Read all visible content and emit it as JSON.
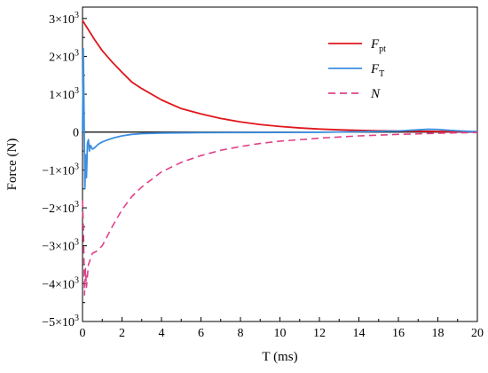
{
  "chart_data": {
    "type": "line",
    "xlabel": "T (ms)",
    "ylabel": "Force (N)",
    "xlim": [
      0,
      20
    ],
    "ylim": [
      -5000,
      3300
    ],
    "x_ticks": [
      0,
      2,
      4,
      6,
      8,
      10,
      12,
      14,
      16,
      18,
      20
    ],
    "x_tick_labels": [
      "0",
      "2",
      "4",
      "6",
      "8",
      "10",
      "12",
      "14",
      "16",
      "18",
      "20"
    ],
    "y_ticks": [
      {
        "value": 3000,
        "mantissa": "3×10",
        "exp": "3"
      },
      {
        "value": 2000,
        "mantissa": "2×10",
        "exp": "3"
      },
      {
        "value": 1000,
        "mantissa": "1×10",
        "exp": "3"
      },
      {
        "value": 0,
        "mantissa": "0",
        "exp": ""
      },
      {
        "value": -1000,
        "mantissa": "−1×10",
        "exp": "3"
      },
      {
        "value": -2000,
        "mantissa": "−2×10",
        "exp": "3"
      },
      {
        "value": -3000,
        "mantissa": "−3×10",
        "exp": "3"
      },
      {
        "value": -4000,
        "mantissa": "−4×10",
        "exp": "3"
      },
      {
        "value": -5000,
        "mantissa": "−5×10",
        "exp": "3"
      }
    ],
    "zero_line": true,
    "grid": false,
    "legend_position": "top-right",
    "series": [
      {
        "name": "F",
        "name_sub": "pt",
        "color": "#e0161b",
        "dash": "solid",
        "x": [
          0,
          0.3,
          0.6,
          1,
          1.5,
          2,
          2.5,
          3,
          4,
          5,
          6,
          7,
          8,
          9,
          10,
          11,
          12,
          13,
          14,
          15,
          16,
          17,
          18,
          19,
          20
        ],
        "y": [
          2950,
          2700,
          2450,
          2150,
          1850,
          1580,
          1320,
          1150,
          850,
          620,
          480,
          360,
          270,
          200,
          150,
          110,
          80,
          60,
          45,
          35,
          28,
          22,
          18,
          15,
          12
        ]
      },
      {
        "name": "F",
        "name_sub": "T",
        "color": "#3d8fe0",
        "dash": "solid",
        "x": [
          0,
          0.04,
          0.08,
          0.12,
          0.16,
          0.2,
          0.25,
          0.3,
          0.35,
          0.4,
          0.5,
          0.6,
          0.8,
          1.0,
          1.3,
          1.6,
          2.0,
          2.5,
          3,
          4,
          6,
          8,
          10,
          12,
          14,
          15,
          16,
          17,
          17.5,
          18,
          18.5,
          19,
          19.5,
          20
        ],
        "y": [
          0,
          2200,
          400,
          -1500,
          -600,
          -1200,
          -300,
          -200,
          -500,
          -350,
          -450,
          -420,
          -320,
          -260,
          -200,
          -150,
          -100,
          -60,
          -40,
          -25,
          -15,
          -10,
          -8,
          -5,
          10,
          20,
          30,
          60,
          75,
          70,
          50,
          35,
          20,
          10
        ]
      },
      {
        "name": "N",
        "name_sub": "",
        "color": "#e0408a",
        "dash": "8,5",
        "x": [
          0,
          0.05,
          0.1,
          0.15,
          0.2,
          0.3,
          0.5,
          0.7,
          1.0,
          1.5,
          2,
          2.5,
          3,
          4,
          5,
          6,
          7,
          8,
          9,
          10,
          12,
          14,
          16,
          18,
          20
        ],
        "y": [
          -1800,
          -2600,
          -4300,
          -3600,
          -4100,
          -3500,
          -3200,
          -3150,
          -3000,
          -2500,
          -2050,
          -1700,
          -1450,
          -1050,
          -800,
          -620,
          -480,
          -380,
          -300,
          -240,
          -160,
          -100,
          -60,
          -30,
          -10
        ]
      }
    ]
  }
}
